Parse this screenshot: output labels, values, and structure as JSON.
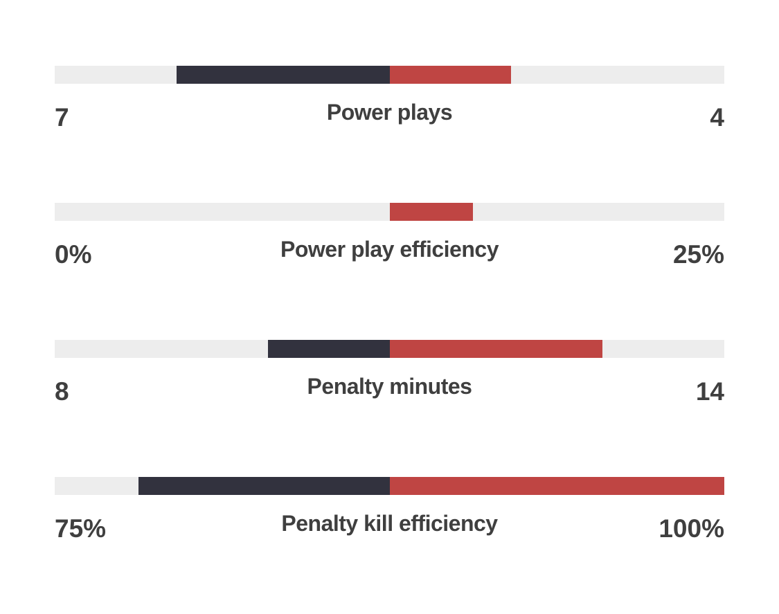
{
  "chart_data": {
    "type": "bar",
    "orientation": "horizontal",
    "layout": "paired-bars-diverging-from-center",
    "title": "",
    "legend_position": "none",
    "grid": false,
    "categories": [
      "Power plays",
      "Power play efficiency",
      "Penalty minutes",
      "Penalty kill efficiency"
    ],
    "series": [
      {
        "name": "home",
        "color": "#32323E",
        "values": [
          7,
          0,
          8,
          75
        ],
        "display": [
          "7",
          "0%",
          "8",
          "75%"
        ]
      },
      {
        "name": "away",
        "color": "#BF4543",
        "values": [
          4,
          25,
          14,
          100
        ],
        "display": [
          "4",
          "25%",
          "14",
          "100%"
        ]
      }
    ],
    "rows": [
      {
        "label": "Power plays",
        "home": 7,
        "away": 4,
        "home_display": "7",
        "away_display": "4",
        "scale": "sum"
      },
      {
        "label": "Power play efficiency",
        "home": 0,
        "away": 25,
        "home_display": "0%",
        "away_display": "25%",
        "scale": "percent"
      },
      {
        "label": "Penalty minutes",
        "home": 8,
        "away": 14,
        "home_display": "8",
        "away_display": "14",
        "scale": "sum"
      },
      {
        "label": "Penalty kill efficiency",
        "home": 75,
        "away": 100,
        "home_display": "75%",
        "away_display": "100%",
        "scale": "percent"
      }
    ],
    "scaling_note": "count rows: segment width = value / (home + away) of half track; percent rows: segment width = value / 100 of half track; bars grow outward from center",
    "colors": {
      "home": "#32323E",
      "away": "#BF4543",
      "track": "#EDEDED",
      "text": "#3F3F3F",
      "background": "#FFFFFF"
    }
  }
}
